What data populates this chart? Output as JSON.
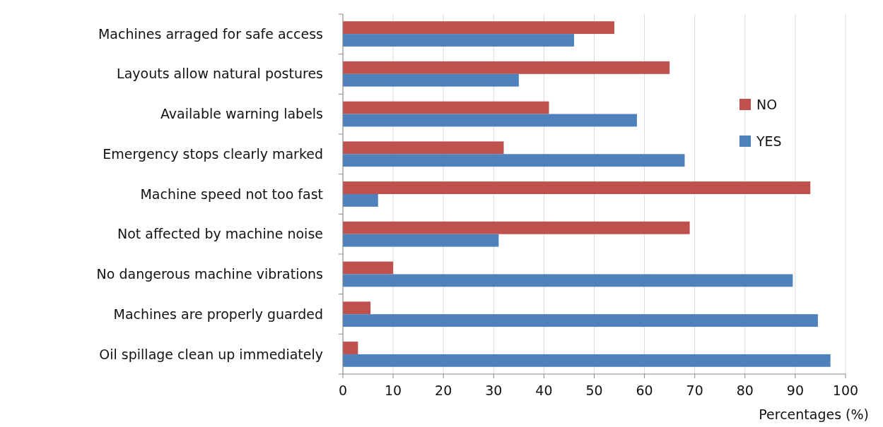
{
  "chart_data": {
    "type": "bar",
    "orientation": "horizontal",
    "xlabel": "Percentages (%)",
    "categories": [
      "Machines arraged for safe access",
      "Layouts allow natural postures",
      "Available warning labels",
      "Emergency stops clearly marked",
      "Machine speed not too fast",
      "Not affected by machine noise",
      "No dangerous machine vibrations",
      "Machines are properly guarded",
      "Oil spillage  clean up immediately"
    ],
    "series": [
      {
        "name": "NO",
        "color": "#c0504d",
        "values": [
          54,
          65,
          41,
          32,
          93,
          69,
          10,
          5.5,
          3
        ]
      },
      {
        "name": "YES",
        "color": "#4f81bd",
        "values": [
          46,
          35,
          58.5,
          68,
          7,
          31,
          89.5,
          94.5,
          97
        ]
      }
    ],
    "xlim": [
      0,
      100
    ],
    "xticks": [
      0,
      10,
      20,
      30,
      40,
      50,
      60,
      70,
      80,
      90,
      100
    ],
    "grid": "x",
    "legend": "right"
  }
}
